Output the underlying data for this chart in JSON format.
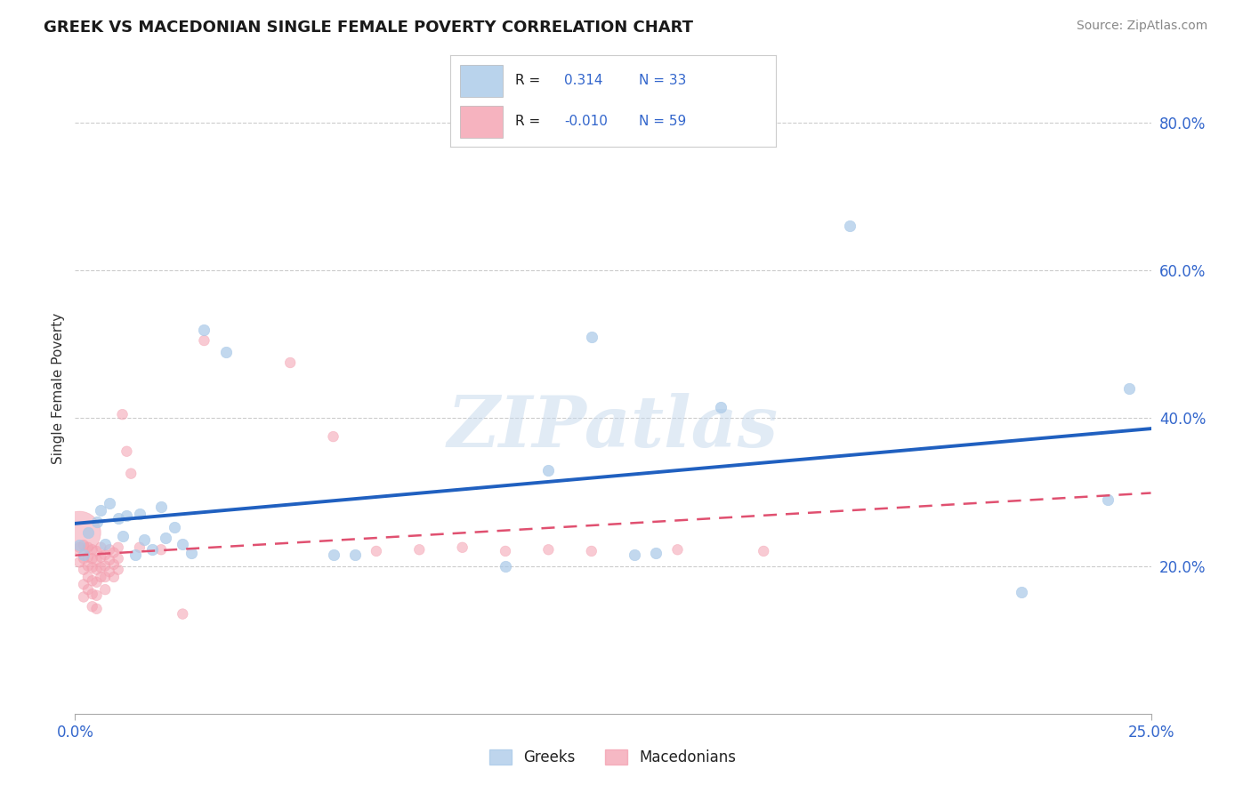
{
  "title": "GREEK VS MACEDONIAN SINGLE FEMALE POVERTY CORRELATION CHART",
  "source": "Source: ZipAtlas.com",
  "ylabel": "Single Female Poverty",
  "xlim": [
    0.0,
    0.25
  ],
  "ylim": [
    0.0,
    0.88
  ],
  "yticks": [
    0.2,
    0.4,
    0.6,
    0.8
  ],
  "ytick_labels": [
    "20.0%",
    "40.0%",
    "60.0%",
    "80.0%"
  ],
  "greek_color": "#a8c8e8",
  "macedonian_color": "#f4a0b0",
  "greek_line_color": "#2060c0",
  "macedonian_line_color": "#e05070",
  "greek_R": 0.314,
  "greek_N": 33,
  "macedonian_R": -0.01,
  "macedonian_N": 59,
  "watermark": "ZIPatlas",
  "greek_points": [
    [
      0.001,
      0.228
    ],
    [
      0.002,
      0.215
    ],
    [
      0.003,
      0.245
    ],
    [
      0.005,
      0.26
    ],
    [
      0.006,
      0.275
    ],
    [
      0.007,
      0.23
    ],
    [
      0.008,
      0.285
    ],
    [
      0.01,
      0.265
    ],
    [
      0.011,
      0.24
    ],
    [
      0.012,
      0.268
    ],
    [
      0.014,
      0.215
    ],
    [
      0.015,
      0.27
    ],
    [
      0.016,
      0.235
    ],
    [
      0.018,
      0.222
    ],
    [
      0.02,
      0.28
    ],
    [
      0.021,
      0.238
    ],
    [
      0.023,
      0.252
    ],
    [
      0.025,
      0.23
    ],
    [
      0.027,
      0.218
    ],
    [
      0.03,
      0.52
    ],
    [
      0.035,
      0.49
    ],
    [
      0.06,
      0.215
    ],
    [
      0.065,
      0.215
    ],
    [
      0.1,
      0.2
    ],
    [
      0.11,
      0.33
    ],
    [
      0.12,
      0.51
    ],
    [
      0.13,
      0.215
    ],
    [
      0.135,
      0.218
    ],
    [
      0.15,
      0.415
    ],
    [
      0.18,
      0.66
    ],
    [
      0.22,
      0.165
    ],
    [
      0.24,
      0.29
    ],
    [
      0.245,
      0.44
    ]
  ],
  "macedonian_points": [
    [
      0.001,
      0.245
    ],
    [
      0.001,
      0.225
    ],
    [
      0.001,
      0.205
    ],
    [
      0.002,
      0.228
    ],
    [
      0.002,
      0.21
    ],
    [
      0.002,
      0.195
    ],
    [
      0.002,
      0.175
    ],
    [
      0.002,
      0.158
    ],
    [
      0.003,
      0.225
    ],
    [
      0.003,
      0.212
    ],
    [
      0.003,
      0.2
    ],
    [
      0.003,
      0.185
    ],
    [
      0.003,
      0.168
    ],
    [
      0.004,
      0.222
    ],
    [
      0.004,
      0.21
    ],
    [
      0.004,
      0.198
    ],
    [
      0.004,
      0.18
    ],
    [
      0.004,
      0.162
    ],
    [
      0.004,
      0.145
    ],
    [
      0.005,
      0.22
    ],
    [
      0.005,
      0.208
    ],
    [
      0.005,
      0.195
    ],
    [
      0.005,
      0.178
    ],
    [
      0.005,
      0.16
    ],
    [
      0.005,
      0.142
    ],
    [
      0.006,
      0.225
    ],
    [
      0.006,
      0.212
    ],
    [
      0.006,
      0.198
    ],
    [
      0.006,
      0.185
    ],
    [
      0.007,
      0.215
    ],
    [
      0.007,
      0.2
    ],
    [
      0.007,
      0.185
    ],
    [
      0.007,
      0.168
    ],
    [
      0.008,
      0.222
    ],
    [
      0.008,
      0.208
    ],
    [
      0.008,
      0.192
    ],
    [
      0.009,
      0.218
    ],
    [
      0.009,
      0.202
    ],
    [
      0.009,
      0.185
    ],
    [
      0.01,
      0.225
    ],
    [
      0.01,
      0.21
    ],
    [
      0.01,
      0.195
    ],
    [
      0.011,
      0.405
    ],
    [
      0.012,
      0.355
    ],
    [
      0.013,
      0.325
    ],
    [
      0.015,
      0.225
    ],
    [
      0.02,
      0.222
    ],
    [
      0.025,
      0.135
    ],
    [
      0.03,
      0.505
    ],
    [
      0.05,
      0.475
    ],
    [
      0.06,
      0.375
    ],
    [
      0.07,
      0.22
    ],
    [
      0.08,
      0.222
    ],
    [
      0.09,
      0.225
    ],
    [
      0.1,
      0.22
    ],
    [
      0.11,
      0.222
    ],
    [
      0.12,
      0.22
    ],
    [
      0.14,
      0.222
    ],
    [
      0.16,
      0.22
    ]
  ],
  "macedonian_big_bubble_idx": 0,
  "macedonian_big_bubble_size": 1200,
  "greek_point_size": 80,
  "macedonian_point_size": 70
}
